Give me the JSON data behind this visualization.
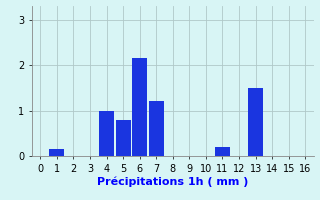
{
  "xlabel": "Précipitations 1h ( mm )",
  "bar_values": [
    0,
    0.15,
    0,
    0,
    1.0,
    0.8,
    2.15,
    1.2,
    0,
    0,
    0,
    0.2,
    0,
    1.5,
    0,
    0
  ],
  "bar_color": "#1a35e0",
  "background_color": "#d8f5f5",
  "grid_color": "#b0c8c8",
  "xlim": [
    -0.5,
    16.5
  ],
  "ylim": [
    0,
    3.3
  ],
  "yticks": [
    0,
    1,
    2,
    3
  ],
  "xtick_labels": [
    "0",
    "1",
    "2",
    "3",
    "4",
    "5",
    "6",
    "7",
    "8",
    "9",
    "10",
    "11",
    "12",
    "13",
    "14",
    "15",
    "16"
  ],
  "bar_width": 0.9,
  "tick_fontsize": 7,
  "xlabel_fontsize": 8
}
